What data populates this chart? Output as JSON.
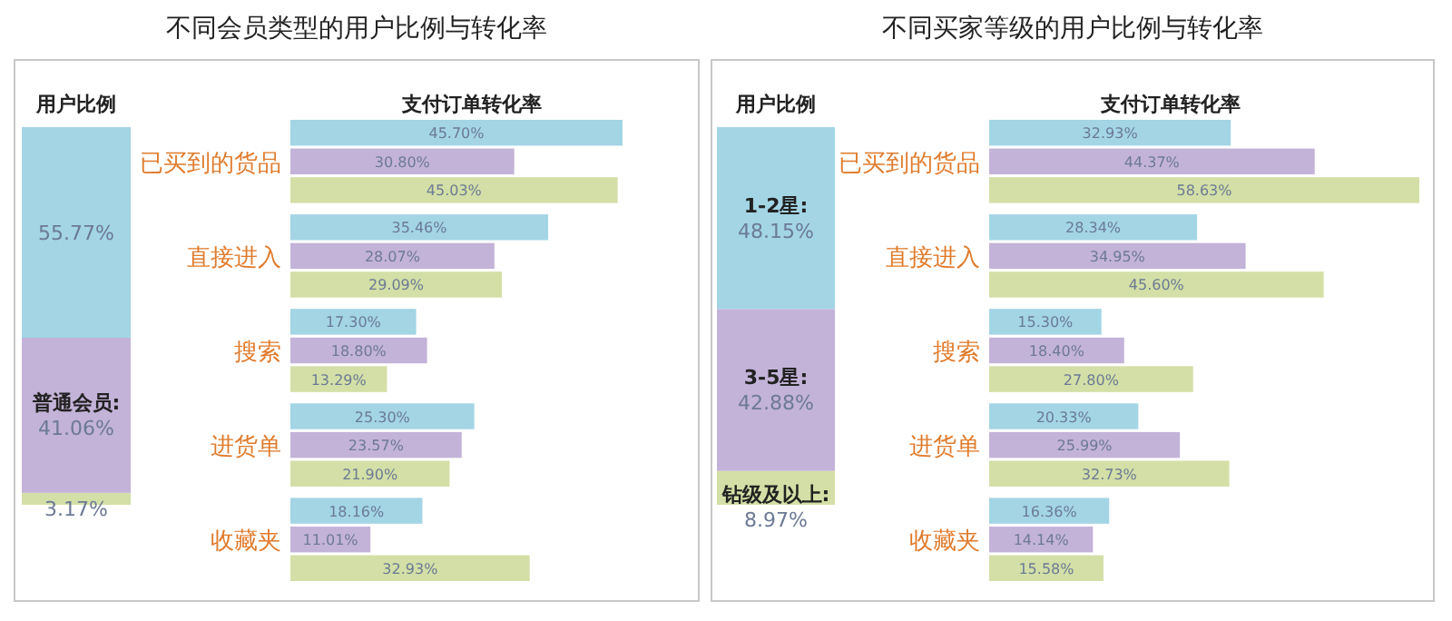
{
  "chart_data": [
    {
      "type": "bar",
      "subtitle": "用户比例",
      "stacked": true,
      "categories": [
        null
      ],
      "ylim": [
        0,
        100
      ],
      "series": [
        {
          "name": null,
          "color": "#d3dfa6",
          "values": [
            3.17
          ],
          "value_labels": [
            "3.17%"
          ]
        },
        {
          "name": "普通会员:",
          "color": "#c3b3d8",
          "values": [
            41.06
          ],
          "value_labels": [
            "41.06%"
          ]
        },
        {
          "name": null,
          "color": "#a3d5e5",
          "values": [
            55.77
          ],
          "value_labels": [
            "55.77%"
          ]
        }
      ]
    },
    {
      "type": "bar",
      "title": "不同会员类型的用户比例与转化率",
      "subtitle": "支付订单转化率",
      "orientation": "horizontal",
      "categories": [
        "已买到的货品",
        "直接进入",
        "搜索",
        "进货单",
        "收藏夹"
      ],
      "series": [
        {
          "color": "#a3d5e5",
          "values": [
            45.7,
            35.46,
            17.3,
            25.3,
            18.16
          ],
          "value_labels": [
            "45.70%",
            "35.46%",
            "17.30%",
            "25.30%",
            "18.16%"
          ]
        },
        {
          "color": "#c3b3d8",
          "values": [
            30.8,
            28.07,
            18.8,
            23.57,
            11.01
          ],
          "value_labels": [
            "30.80%",
            "28.07%",
            "18.80%",
            "23.57%",
            "11.01%"
          ]
        },
        {
          "color": "#d3dfa6",
          "values": [
            45.03,
            29.09,
            13.29,
            21.9,
            32.93
          ],
          "value_labels": [
            "45.03%",
            "29.09%",
            "13.29%",
            "21.90%",
            "32.93%"
          ]
        }
      ]
    },
    {
      "type": "bar",
      "subtitle": "用户比例",
      "stacked": true,
      "categories": [
        null
      ],
      "ylim": [
        0,
        100
      ],
      "series": [
        {
          "name": "钻级及以上:",
          "color": "#d3dfa6",
          "values": [
            8.97
          ],
          "value_labels": [
            "8.97%"
          ]
        },
        {
          "name": "3-5星:",
          "color": "#c3b3d8",
          "values": [
            42.88
          ],
          "value_labels": [
            "42.88%"
          ]
        },
        {
          "name": "1-2星:",
          "color": "#a3d5e5",
          "values": [
            48.15
          ],
          "value_labels": [
            "48.15%"
          ]
        }
      ]
    },
    {
      "type": "bar",
      "title": "不同买家等级的用户比例与转化率",
      "subtitle": "支付订单转化率",
      "orientation": "horizontal",
      "categories": [
        "已买到的货品",
        "直接进入",
        "搜索",
        "进货单",
        "收藏夹"
      ],
      "series": [
        {
          "color": "#a3d5e5",
          "values": [
            32.93,
            28.34,
            15.3,
            20.33,
            16.36
          ],
          "value_labels": [
            "32.93%",
            "28.34%",
            "15.30%",
            "20.33%",
            "16.36%"
          ]
        },
        {
          "color": "#c3b3d8",
          "values": [
            44.37,
            34.95,
            18.4,
            25.99,
            14.14
          ],
          "value_labels": [
            "44.37%",
            "34.95%",
            "18.40%",
            "25.99%",
            "14.14%"
          ]
        },
        {
          "color": "#d3dfa6",
          "values": [
            58.63,
            45.6,
            27.8,
            32.73,
            15.58
          ],
          "value_labels": [
            "58.63%",
            "45.60%",
            "27.80%",
            "32.73%",
            "15.58%"
          ]
        }
      ]
    }
  ]
}
